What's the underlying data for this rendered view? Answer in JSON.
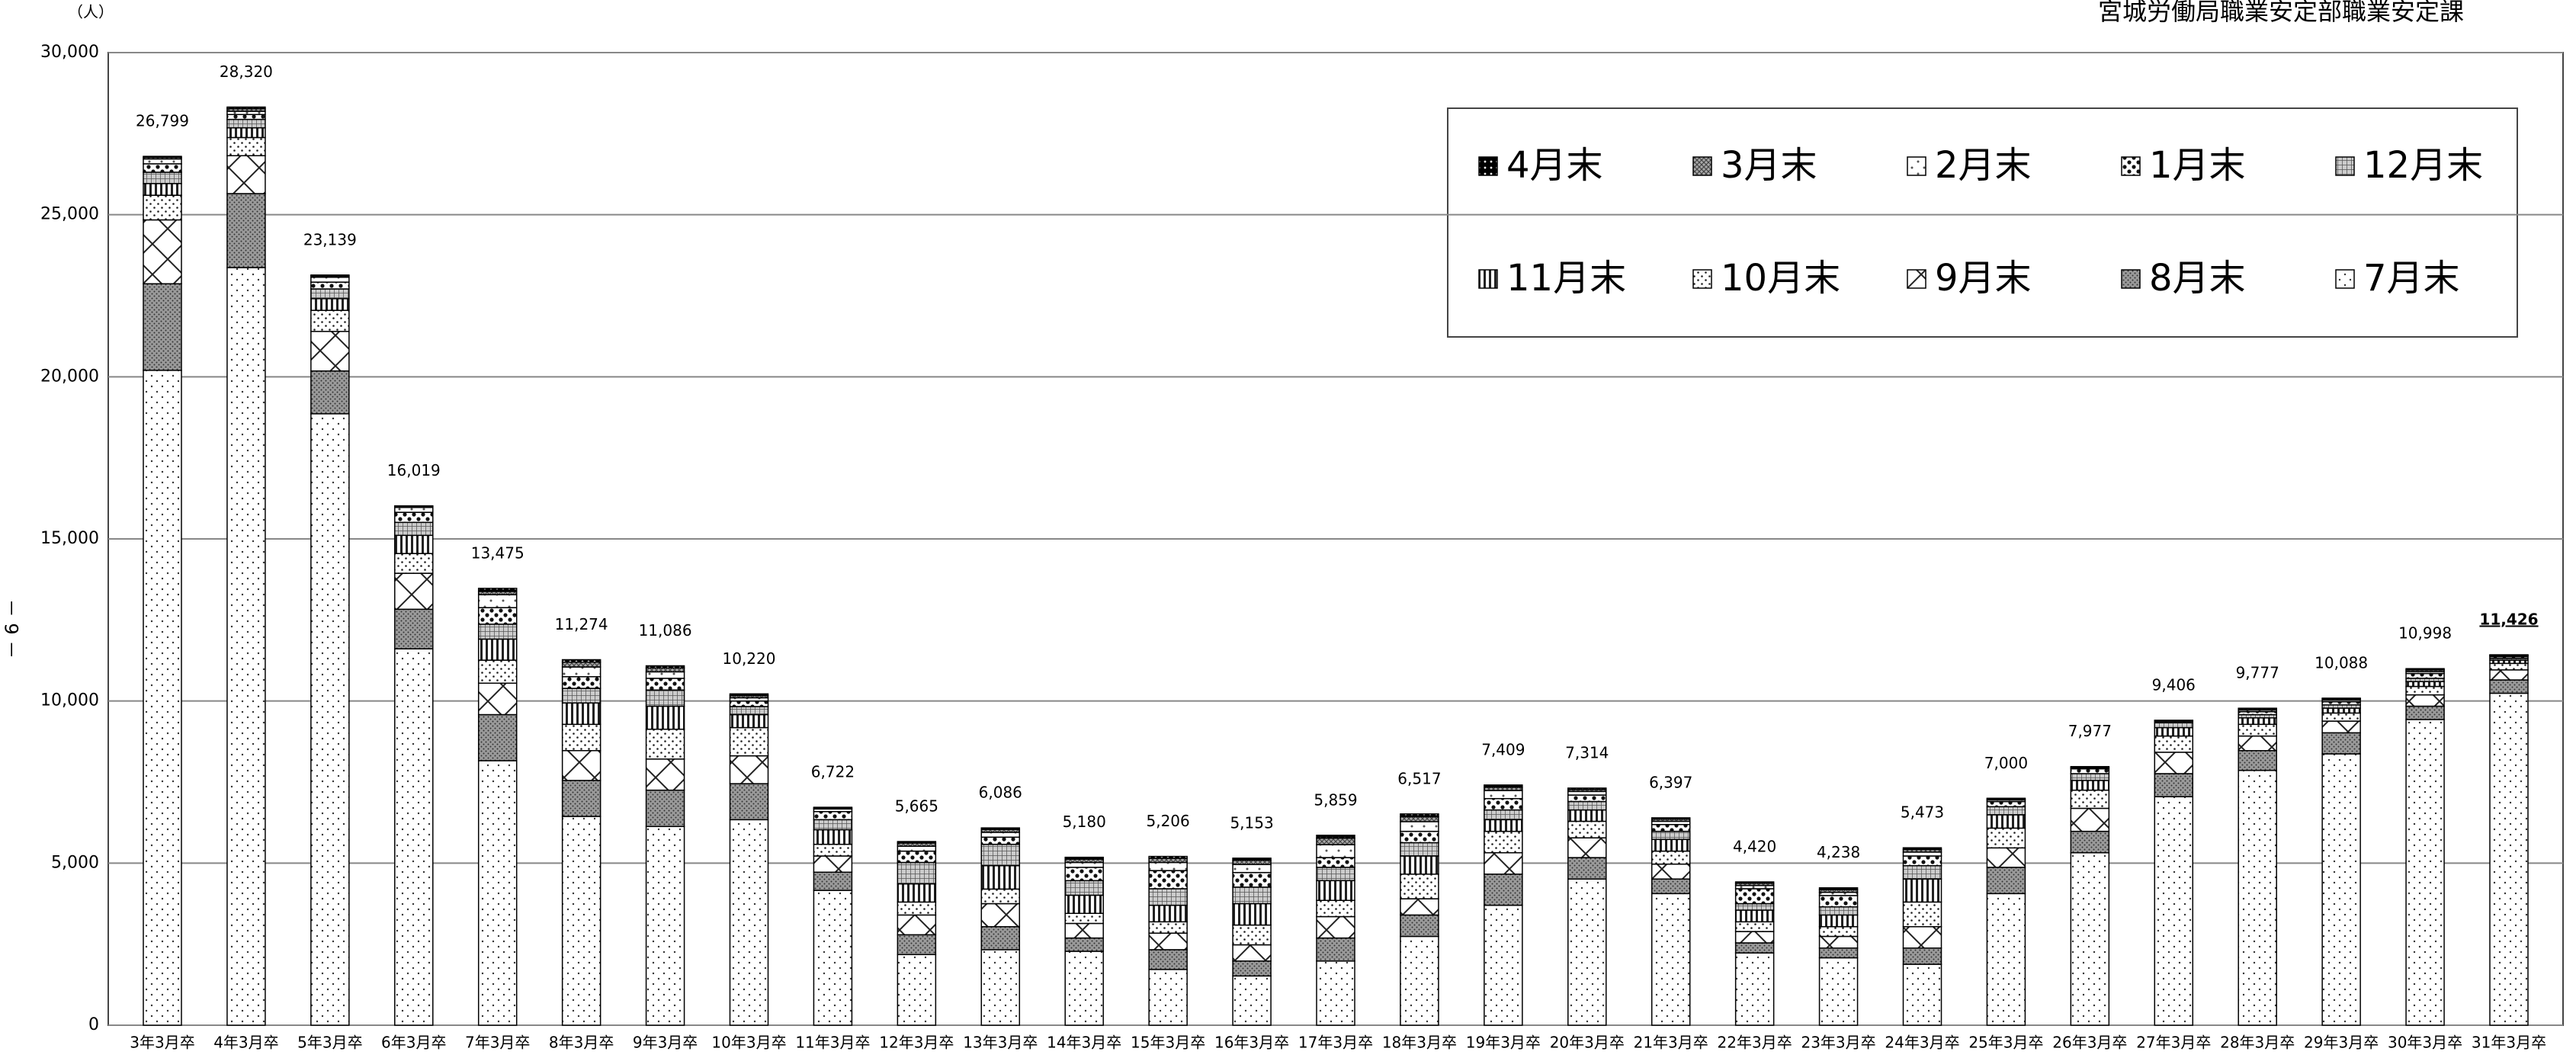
{
  "chart_data": {
    "type": "stacked_bar",
    "title": "宮城労働局職業安定部職業安定課",
    "y_unit": "（人）",
    "page_number": "－ 6 －",
    "categories": [
      "3年3月卒",
      "4年3月卒",
      "5年3月卒",
      "6年3月卒",
      "7年3月卒",
      "8年3月卒",
      "9年3月卒",
      "10年3月卒",
      "11年3月卒",
      "12年3月卒",
      "13年3月卒",
      "14年3月卒",
      "15年3月卒",
      "16年3月卒",
      "17年3月卒",
      "18年3月卒",
      "19年3月卒",
      "20年3月卒",
      "21年3月卒",
      "22年3月卒",
      "23年3月卒",
      "24年3月卒",
      "25年3月卒",
      "26年3月卒",
      "27年3月卒",
      "28年3月卒",
      "29年3月卒",
      "30年3月卒",
      "31年3月卒"
    ],
    "series": [
      {
        "name": "7月末",
        "values": [
          20200,
          23370,
          18860,
          11610,
          8160,
          6440,
          6130,
          6340,
          4160,
          2180,
          2330,
          2280,
          1720,
          1520,
          1980,
          2740,
          3700,
          4510,
          4060,
          2230,
          2080,
          1880,
          4060,
          5320,
          7050,
          7860,
          8370,
          9430,
          10240
        ]
      },
      {
        "name": "8月末",
        "values": [
          2670,
          2280,
          1320,
          1220,
          1420,
          1110,
          1120,
          1110,
          560,
          610,
          710,
          410,
          610,
          460,
          710,
          660,
          960,
          660,
          450,
          310,
          300,
          500,
          810,
          660,
          710,
          610,
          650,
          410,
          410
        ]
      },
      {
        "name": "9月末",
        "values": [
          1970,
          1170,
          1220,
          1110,
          970,
          920,
          960,
          860,
          500,
          610,
          710,
          450,
          510,
          500,
          660,
          500,
          660,
          610,
          460,
          350,
          360,
          660,
          600,
          710,
          660,
          450,
          360,
          350,
          310
        ]
      },
      {
        "name": "10月末",
        "values": [
          760,
          560,
          650,
          610,
          710,
          810,
          920,
          870,
          360,
          400,
          450,
          310,
          350,
          610,
          500,
          760,
          660,
          510,
          400,
          300,
          300,
          760,
          610,
          560,
          500,
          360,
          250,
          260,
          200
        ]
      },
      {
        "name": "11月末",
        "values": [
          360,
          300,
          360,
          560,
          650,
          660,
          710,
          400,
          450,
          560,
          720,
          560,
          510,
          660,
          610,
          560,
          360,
          350,
          360,
          360,
          360,
          710,
          410,
          300,
          260,
          200,
          150,
          150,
          100
        ]
      },
      {
        "name": "12月末",
        "values": [
          350,
          260,
          300,
          400,
          460,
          450,
          500,
          250,
          310,
          660,
          660,
          450,
          510,
          510,
          410,
          410,
          300,
          260,
          250,
          200,
          250,
          410,
          250,
          210,
          150,
          100,
          100,
          100,
          60
        ]
      },
      {
        "name": "1月末",
        "values": [
          260,
          150,
          210,
          310,
          510,
          360,
          360,
          170,
          250,
          350,
          220,
          410,
          560,
          450,
          300,
          350,
          350,
          200,
          210,
          460,
          350,
          300,
          160,
          150,
          40,
          90,
          100,
          150,
          50
        ]
      },
      {
        "name": "2月末",
        "values": [
          150,
          100,
          150,
          150,
          400,
          300,
          200,
          100,
          80,
          150,
          150,
          150,
          250,
          250,
          400,
          300,
          250,
          110,
          100,
          100,
          100,
          120,
          50,
          30,
          20,
          50,
          50,
          60,
          30
        ]
      },
      {
        "name": "3月末",
        "values": [
          50,
          80,
          40,
          30,
          100,
          150,
          120,
          70,
          30,
          100,
          90,
          100,
          130,
          130,
          200,
          150,
          100,
          60,
          70,
          70,
          80,
          80,
          30,
          20,
          10,
          40,
          40,
          50,
          15
        ]
      },
      {
        "name": "4月末",
        "values": [
          29,
          50,
          29,
          20,
          95,
          74,
          66,
          50,
          22,
          45,
          46,
          60,
          56,
          63,
          89,
          87,
          69,
          44,
          37,
          40,
          58,
          53,
          20,
          17,
          6,
          17,
          18,
          38,
          11
        ]
      }
    ],
    "totals": [
      26799,
      28320,
      23139,
      16019,
      13475,
      11274,
      11086,
      10220,
      6722,
      5665,
      6086,
      5180,
      5206,
      5153,
      5859,
      6517,
      7409,
      7314,
      6397,
      4420,
      4238,
      5473,
      7000,
      7977,
      9406,
      9777,
      10088,
      10998,
      11426
    ],
    "total_labels": [
      "26,799",
      "28,320",
      "23,139",
      "16,019",
      "13,475",
      "11,274",
      "11,086",
      "10,220",
      "6,722",
      "5,665",
      "6,086",
      "5,180",
      "5,206",
      "5,153",
      "5,859",
      "6,517",
      "7,409",
      "7,314",
      "6,397",
      "4,420",
      "4,238",
      "5,473",
      "7,000",
      "7,977",
      "9,406",
      "9,777",
      "10,088",
      "10,998",
      "11,426"
    ],
    "ylim": [
      0,
      30000
    ],
    "yticks": [
      0,
      {
        "value": 5000,
        "label": "5,000"
      },
      {
        "value": 10000,
        "label": "10,000"
      },
      {
        "value": 15000,
        "label": "15,000"
      },
      {
        "value": 20000,
        "label": "20,000"
      },
      {
        "value": 25000,
        "label": "25,000"
      },
      {
        "value": 30000,
        "label": "30,000"
      }
    ],
    "grid": true
  }
}
